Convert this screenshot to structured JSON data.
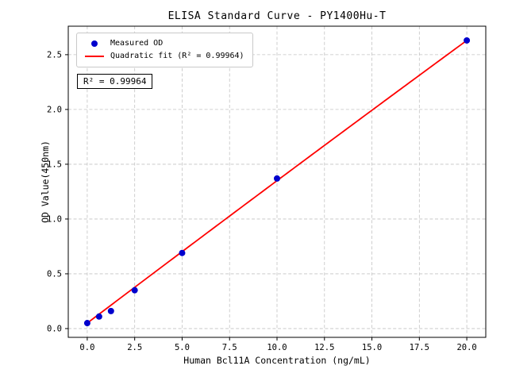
{
  "chart_data": {
    "type": "scatter",
    "title": "ELISA Standard Curve - PY1400Hu-T",
    "xlabel": "Human Bcl11A Concentration (ng/mL)",
    "ylabel": "OD Value(450nm)",
    "annotation": "R² = 0.99964",
    "grid": true,
    "xlim": [
      -1,
      21
    ],
    "ylim": [
      -0.08,
      2.76
    ],
    "x": [
      0,
      0.625,
      1.25,
      2.5,
      5,
      10,
      20
    ],
    "y": [
      0.05,
      0.11,
      0.16,
      0.35,
      0.69,
      1.37,
      2.63
    ],
    "x_ticks": [
      {
        "v": 0,
        "label": "0.0"
      },
      {
        "v": 2.5,
        "label": "2.5"
      },
      {
        "v": 5,
        "label": "5.0"
      },
      {
        "v": 7.5,
        "label": "7.5"
      },
      {
        "v": 10,
        "label": "10.0"
      },
      {
        "v": 12.5,
        "label": "12.5"
      },
      {
        "v": 15,
        "label": "15.0"
      },
      {
        "v": 17.5,
        "label": "17.5"
      },
      {
        "v": 20,
        "label": "20.0"
      }
    ],
    "y_ticks": [
      {
        "v": 0,
        "label": "0.0"
      },
      {
        "v": 0.5,
        "label": "0.5"
      },
      {
        "v": 1,
        "label": "1.0"
      },
      {
        "v": 1.5,
        "label": "1.5"
      },
      {
        "v": 2,
        "label": "2.0"
      },
      {
        "v": 2.5,
        "label": "2.5"
      }
    ],
    "fit": {
      "type": "quadratic",
      "r_squared": 0.99964,
      "coefficients": [
        0.05,
        0.131,
        -0.0001
      ],
      "x_range": [
        0,
        20
      ]
    },
    "legend": {
      "position": "upper-left",
      "entries": [
        {
          "marker": "dot",
          "color": "#0000cd",
          "label": "Measured OD"
        },
        {
          "marker": "line",
          "color": "#ff0000",
          "label": "Quadratic fit (R² = 0.99964)"
        }
      ]
    },
    "colors": {
      "points": "#0000cd",
      "fit_line": "#ff0000",
      "grid": "#c3c3c3",
      "axis": "#000000"
    }
  }
}
